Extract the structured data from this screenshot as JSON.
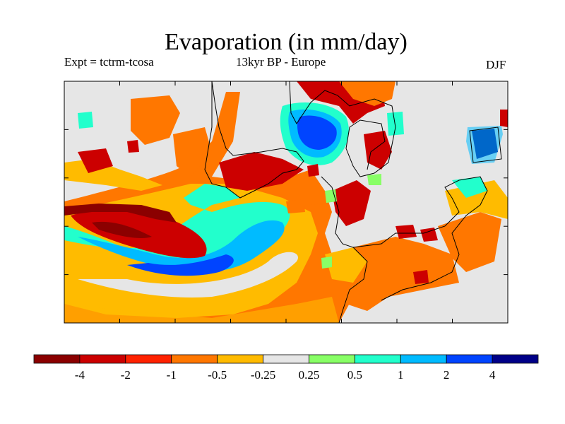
{
  "title": "Evaporation (in mm/day)",
  "subtitle_left": "Expt = tctrm-tcosa",
  "subtitle_center": "13kyr BP - Europe",
  "subtitle_right": "DJF",
  "colorbar": {
    "colors": [
      "#8b0000",
      "#cc0000",
      "#ff2200",
      "#ff7700",
      "#ffbb00",
      "#e6e6e6",
      "#88ff66",
      "#22ffcc",
      "#00bbff",
      "#0044ff",
      "#000088"
    ],
    "tick_labels": [
      "-4",
      "-2",
      "-1",
      "-0.5",
      "-0.25",
      "0.25",
      "0.5",
      "1",
      "2",
      "4"
    ]
  },
  "map": {
    "background": "#e6e6e6",
    "x_ticks": 8,
    "y_ticks": 5
  }
}
